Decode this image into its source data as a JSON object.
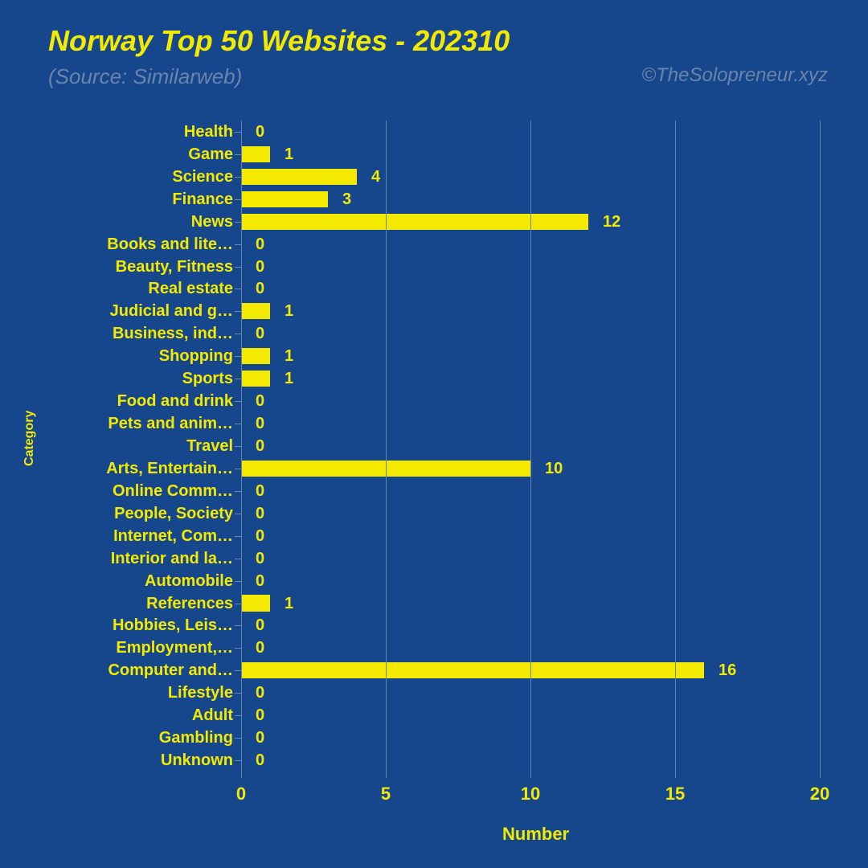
{
  "title": "Norway Top 50 Websites - 202310",
  "subtitle": "(Source: Similarweb)",
  "credit": "©TheSolopreneur.xyz",
  "chart": {
    "type": "horizontal-bar",
    "xlabel": "Number",
    "ylabel": "Category",
    "xlim": [
      0,
      20
    ],
    "xtick_step": 5,
    "xticks": [
      0,
      5,
      10,
      15,
      20
    ],
    "bar_color": "#f4ea00",
    "text_color": "#f4ea00",
    "grid_color": "#6a85ab",
    "background_color": "#16468b",
    "subtitle_color": "#6a85ab",
    "title_fontsize": 36,
    "subtitle_fontsize": 26,
    "label_fontsize": 20,
    "axis_label_fontsize": 22,
    "bar_height_ratio": 0.72,
    "categories": [
      {
        "label": "Health",
        "value": 0
      },
      {
        "label": "Game",
        "value": 1
      },
      {
        "label": "Science",
        "value": 4
      },
      {
        "label": "Finance",
        "value": 3
      },
      {
        "label": "News",
        "value": 12
      },
      {
        "label": "Books and lite…",
        "value": 0
      },
      {
        "label": "Beauty, Fitness",
        "value": 0
      },
      {
        "label": "Real estate",
        "value": 0
      },
      {
        "label": "Judicial and g…",
        "value": 1
      },
      {
        "label": "Business, ind…",
        "value": 0
      },
      {
        "label": "Shopping",
        "value": 1
      },
      {
        "label": "Sports",
        "value": 1
      },
      {
        "label": "Food and drink",
        "value": 0
      },
      {
        "label": "Pets and anim…",
        "value": 0
      },
      {
        "label": "Travel",
        "value": 0
      },
      {
        "label": "Arts, Entertain…",
        "value": 10
      },
      {
        "label": "Online Comm…",
        "value": 0
      },
      {
        "label": "People, Society",
        "value": 0
      },
      {
        "label": "Internet, Com…",
        "value": 0
      },
      {
        "label": "Interior and la…",
        "value": 0
      },
      {
        "label": "Automobile",
        "value": 0
      },
      {
        "label": "References",
        "value": 1
      },
      {
        "label": "Hobbies, Leis…",
        "value": 0
      },
      {
        "label": "Employment,…",
        "value": 0
      },
      {
        "label": "Computer and…",
        "value": 16
      },
      {
        "label": "Lifestyle",
        "value": 0
      },
      {
        "label": "Adult",
        "value": 0
      },
      {
        "label": "Gambling",
        "value": 0
      },
      {
        "label": "Unknown",
        "value": 0
      }
    ]
  }
}
